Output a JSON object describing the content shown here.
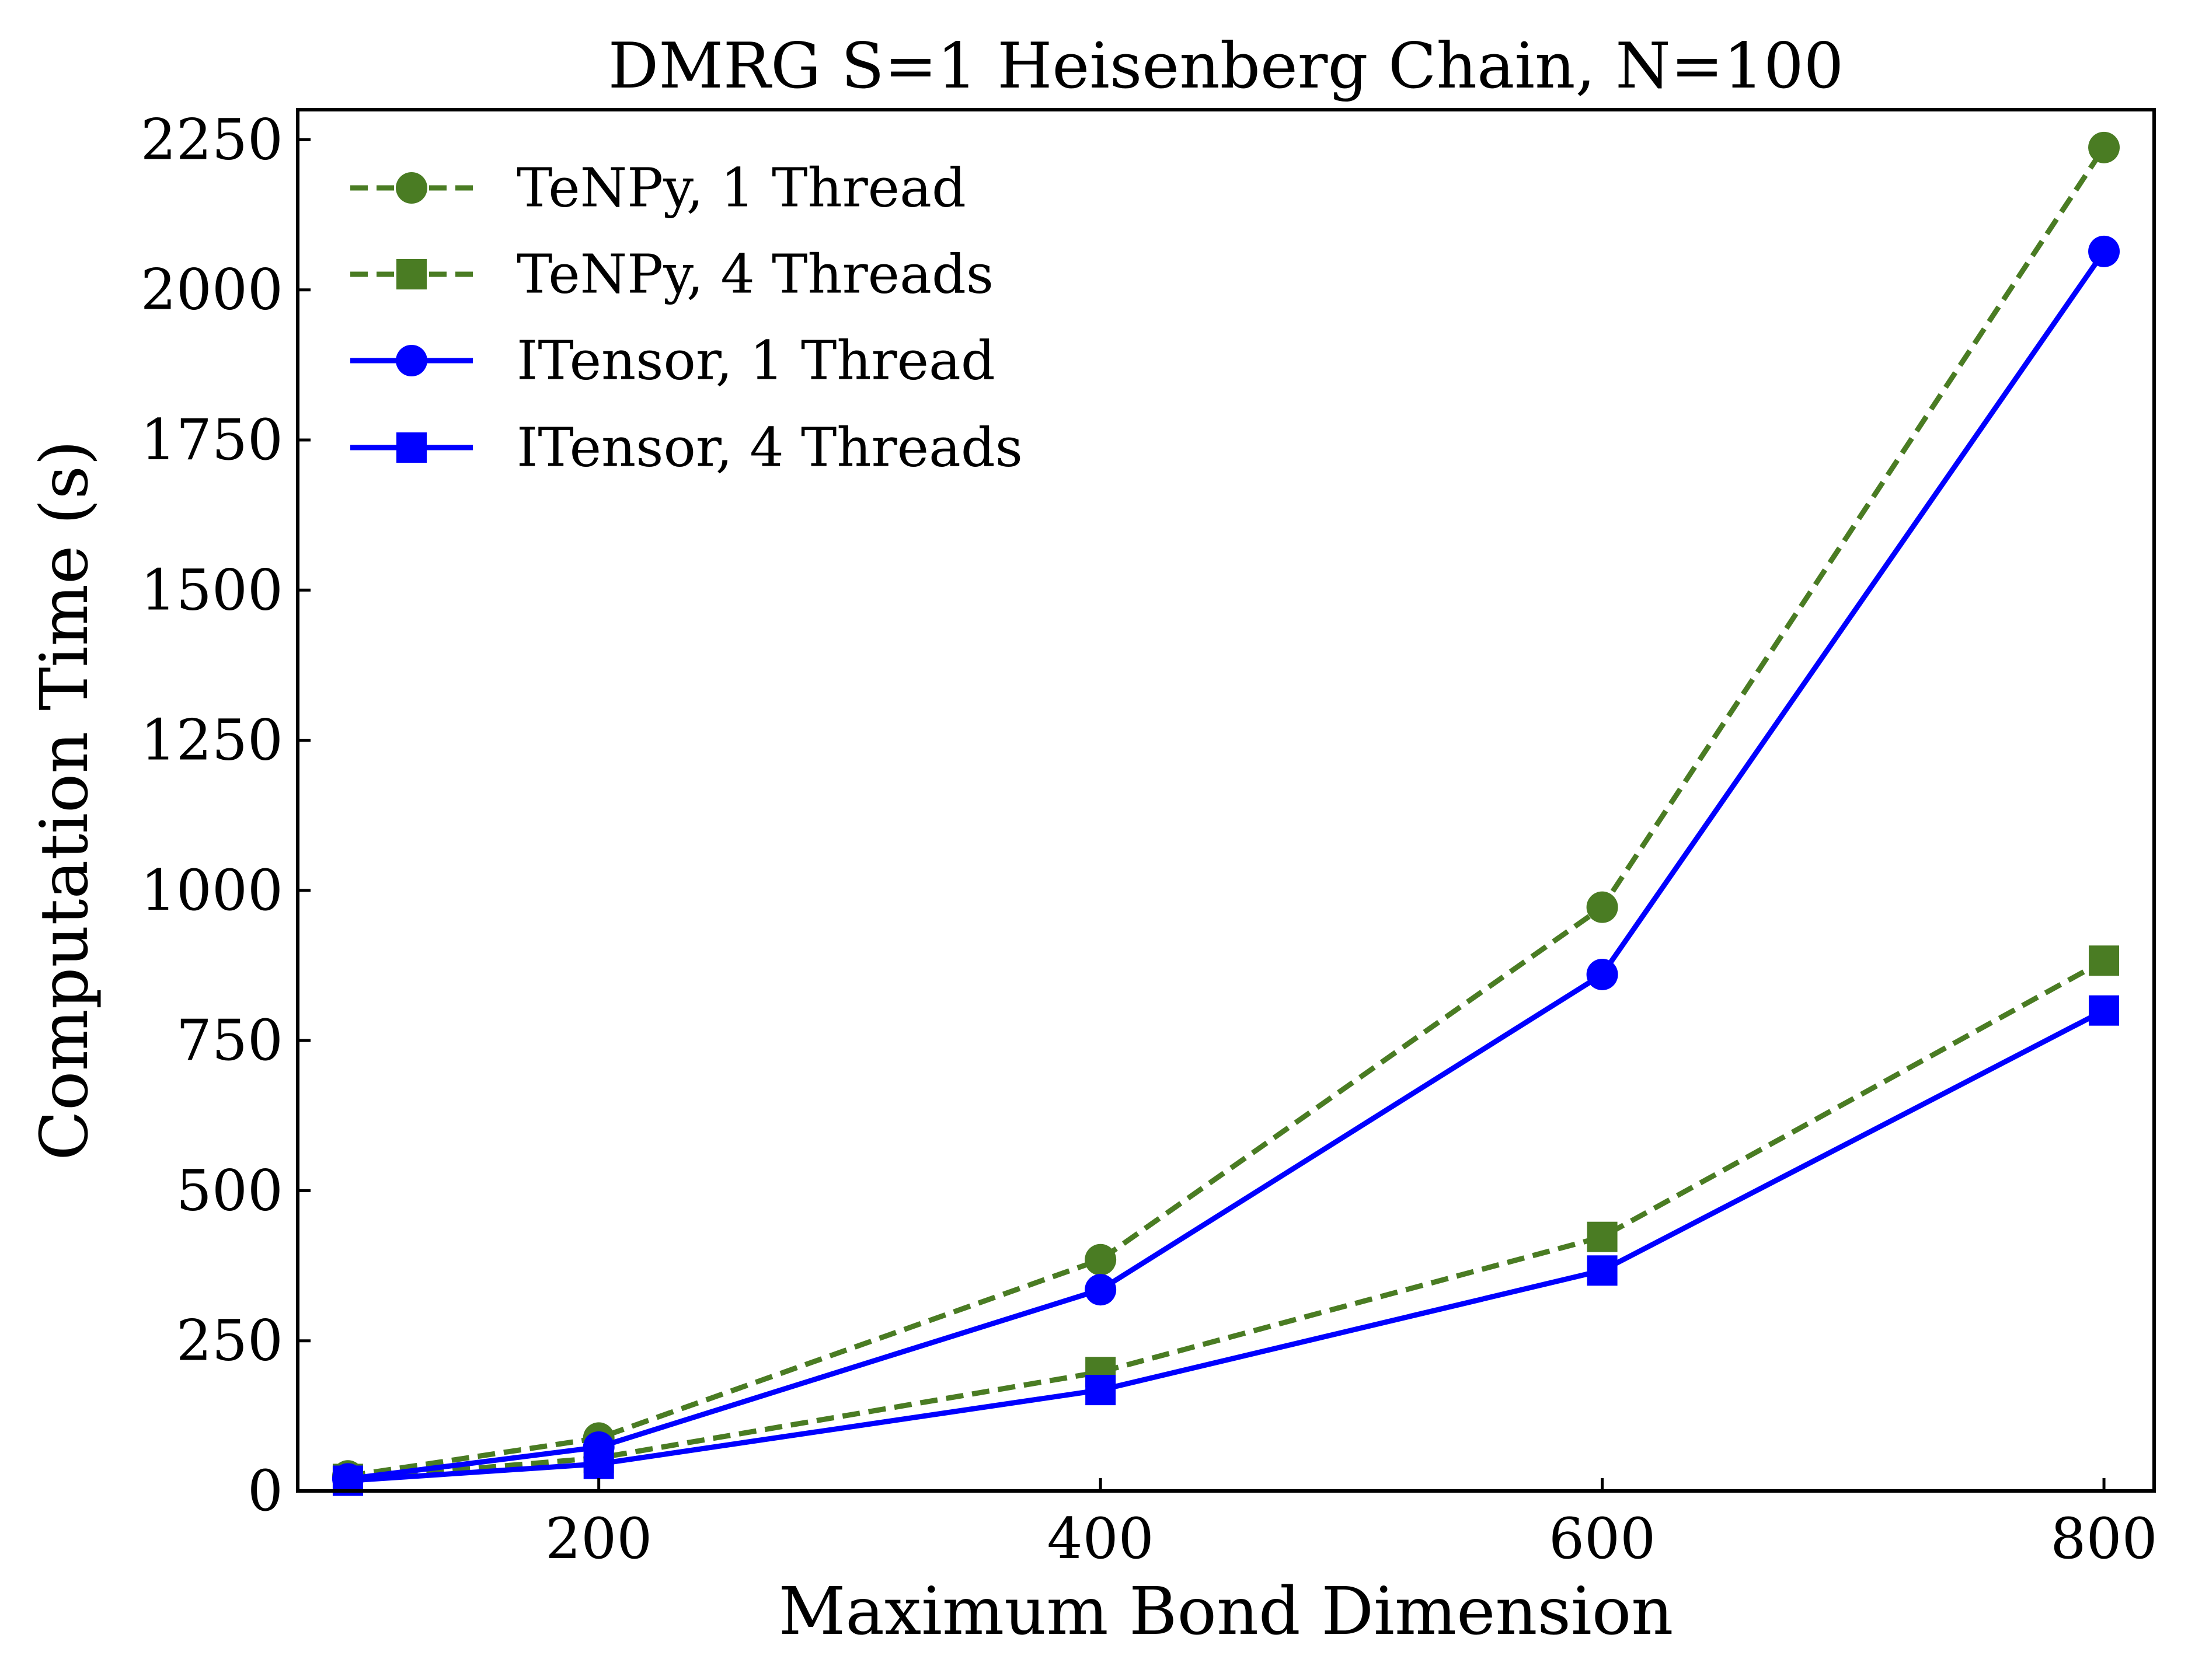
{
  "chart_data": {
    "type": "line",
    "title": "DMRG S=1 Heisenberg Chain, N=100",
    "xlabel": "Maximum Bond Dimension",
    "ylabel": "Computation Time (s)",
    "xlim": [
      80,
      820
    ],
    "ylim": [
      0,
      2300
    ],
    "xticks": [
      "200",
      "400",
      "600",
      "800"
    ],
    "yticks": [
      "0",
      "250",
      "500",
      "750",
      "1000",
      "1250",
      "1500",
      "1750",
      "2000",
      "2250"
    ],
    "grid": false,
    "legend_position": "upper-left",
    "x": [
      100,
      200,
      400,
      600,
      800
    ],
    "series": [
      {
        "name": "TeNPy, 1 Thread",
        "values": [
          25,
          88,
          385,
          972,
          2237
        ],
        "color": "#4a7c23",
        "dash": "dashed",
        "marker": "circle"
      },
      {
        "name": "TeNPy, 4 Threads",
        "values": [
          20,
          55,
          198,
          423,
          883
        ],
        "color": "#4a7c23",
        "dash": "dashed",
        "marker": "square"
      },
      {
        "name": "ITensor, 1 Thread",
        "values": [
          20,
          73,
          335,
          860,
          2064
        ],
        "color": "#0000ff",
        "dash": "solid",
        "marker": "circle"
      },
      {
        "name": "ITensor, 4 Threads",
        "values": [
          17,
          45,
          168,
          367,
          800
        ],
        "color": "#0000ff",
        "dash": "solid",
        "marker": "square"
      }
    ]
  }
}
